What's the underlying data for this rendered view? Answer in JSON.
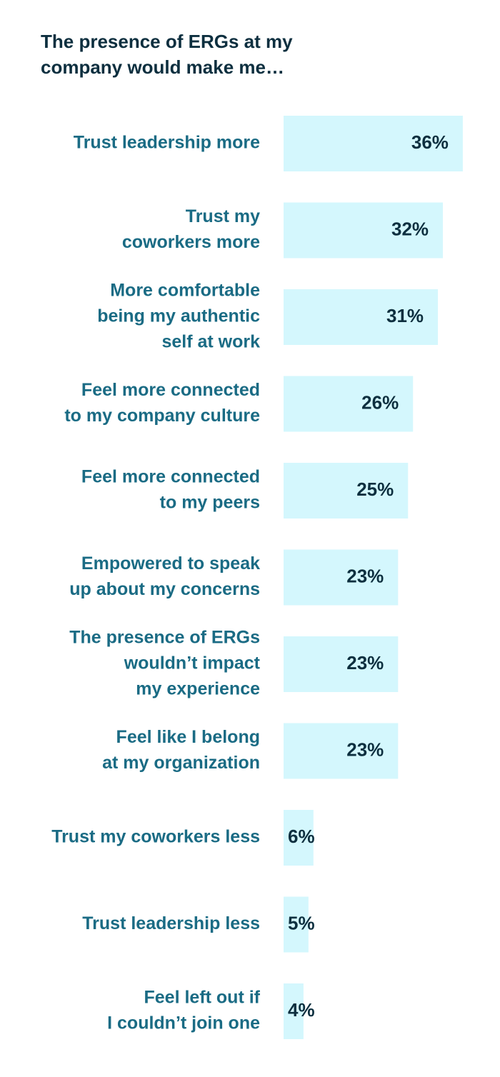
{
  "chart_data": {
    "type": "bar",
    "orientation": "horizontal",
    "title": [
      "The presence of ERGs at my",
      "company would make me…"
    ],
    "categories": [
      [
        "Trust leadership more"
      ],
      [
        "Trust my",
        "coworkers more"
      ],
      [
        "More comfortable",
        "being my authentic",
        "self at work"
      ],
      [
        "Feel more connected",
        "to my company culture"
      ],
      [
        "Feel more connected",
        "to my peers"
      ],
      [
        "Empowered to speak",
        "up about my concerns"
      ],
      [
        "The presence of ERGs",
        "wouldn’t impact",
        "my experience"
      ],
      [
        "Feel like I belong",
        "at my organization"
      ],
      [
        "Trust my coworkers less"
      ],
      [
        "Trust leadership less"
      ],
      [
        "Feel left out if",
        "I couldn’t join one"
      ]
    ],
    "values": [
      36,
      32,
      31,
      26,
      25,
      23,
      23,
      23,
      6,
      5,
      4
    ],
    "value_labels": [
      "36%",
      "32%",
      "31%",
      "26%",
      "25%",
      "23%",
      "23%",
      "23%",
      "6%",
      "5%",
      "4%"
    ],
    "color": "#d4f7fd"
  }
}
